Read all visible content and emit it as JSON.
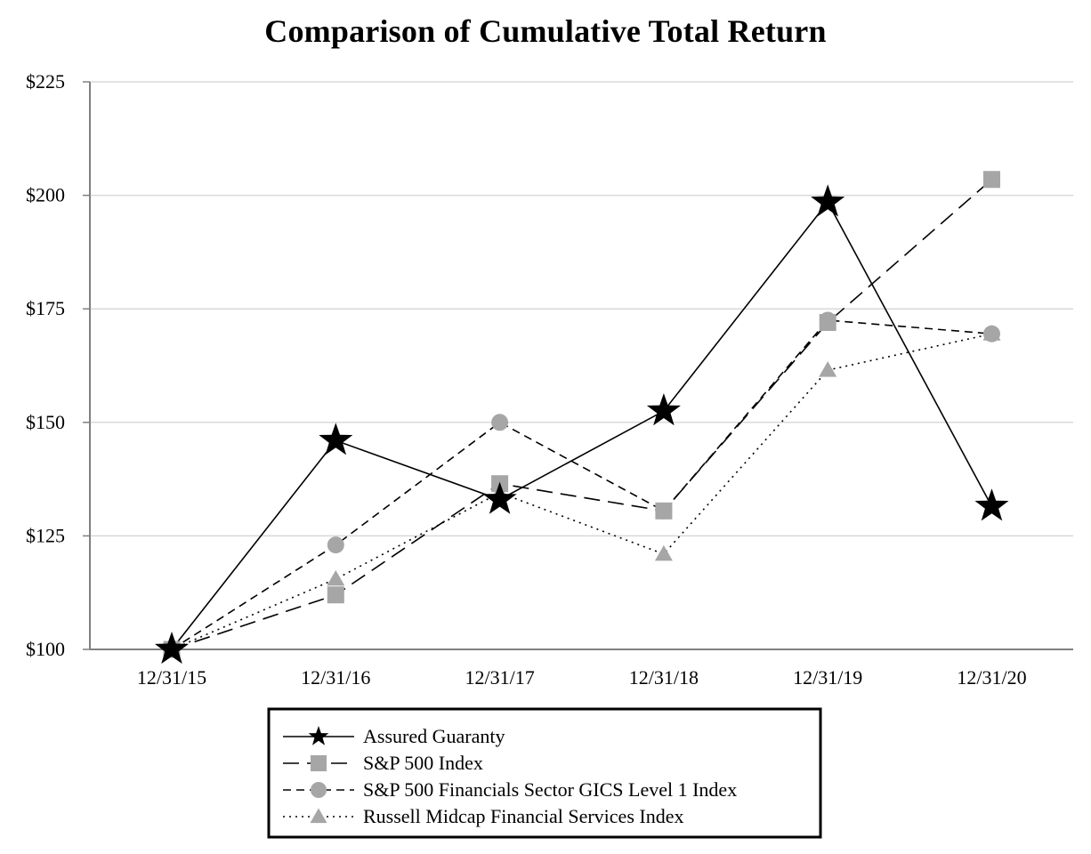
{
  "chart_data": {
    "type": "line",
    "title": "Comparison of Cumulative Total Return",
    "xlabel": "",
    "ylabel": "",
    "categories": [
      "12/31/15",
      "12/31/16",
      "12/31/17",
      "12/31/18",
      "12/31/19",
      "12/31/20"
    ],
    "ylim": [
      100,
      225
    ],
    "yticks": [
      100,
      125,
      150,
      175,
      200,
      225
    ],
    "ytick_labels": [
      "$100",
      "$125",
      "$150",
      "$175",
      "$200",
      "$225"
    ],
    "grid": "horizontal",
    "legend_position": "bottom-center",
    "series": [
      {
        "name": "Assured Guaranty",
        "values": [
          100,
          146,
          133,
          152.5,
          198.5,
          131.5
        ],
        "color": "#000000",
        "dash": "solid",
        "marker": "star"
      },
      {
        "name": "S&P 500 Index",
        "values": [
          100,
          112,
          136.5,
          130.5,
          172,
          203.5
        ],
        "color": "#000000",
        "marker_color": "#a6a6a6",
        "dash": "long-dash",
        "marker": "square"
      },
      {
        "name": "S&P 500 Financials Sector GICS Level 1 Index",
        "values": [
          100,
          123,
          150,
          130.5,
          172.5,
          169.5
        ],
        "color": "#000000",
        "marker_color": "#a6a6a6",
        "dash": "dash",
        "marker": "circle"
      },
      {
        "name": "Russell Midcap Financial Services Index",
        "values": [
          100,
          115.5,
          134.5,
          121,
          161.5,
          169.5
        ],
        "color": "#000000",
        "marker_color": "#a6a6a6",
        "dash": "dot",
        "marker": "triangle"
      }
    ]
  }
}
